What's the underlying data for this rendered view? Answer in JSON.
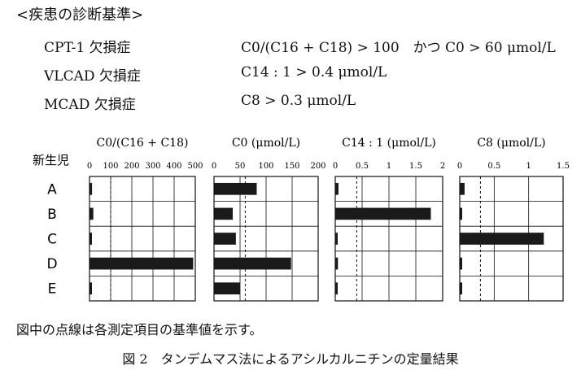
{
  "criteria": {
    "heading": "<疾患の診断基準>",
    "rows": [
      {
        "name": "CPT-1 欠損症",
        "condition": "C0/(C16 + C18) > 100　かつ C0 > 60 μmol/L"
      },
      {
        "name": "VLCAD 欠損症",
        "condition": "C14 : 1 > 0.4 μmol/L"
      },
      {
        "name": "MCAD 欠損症",
        "condition": "C8 > 0.3 μmol/L"
      }
    ]
  },
  "newborn_label": "新生児",
  "footnote": "図中の点線は各測定項目の基準値を示す。",
  "caption": "図 2　タンデムマス法によるアシルカルニチンの定量結果",
  "colors": {
    "bar": "#1a1a1a",
    "line": "#111111"
  },
  "chart_data": [
    {
      "type": "bar",
      "title": "C0/(C16 + C18)",
      "categories": [
        "A",
        "B",
        "C",
        "D",
        "E"
      ],
      "values": [
        12,
        18,
        6,
        490,
        10
      ],
      "xlim": [
        0,
        500
      ],
      "ticks": [
        0,
        100,
        200,
        300,
        400,
        500
      ],
      "tick_labels": [
        "0",
        "100",
        "200",
        "300",
        "400",
        "500"
      ],
      "reference": 100,
      "grid": true
    },
    {
      "type": "bar",
      "title": "C0 (μmol/L)",
      "categories": [
        "A",
        "B",
        "C",
        "D",
        "E"
      ],
      "values": [
        82,
        36,
        42,
        148,
        50
      ],
      "xlim": [
        0,
        200
      ],
      "ticks": [
        0,
        50,
        100,
        150,
        200
      ],
      "tick_labels": [
        "0",
        "50",
        "100",
        "150",
        "200"
      ],
      "reference": 60,
      "grid": true
    },
    {
      "type": "bar",
      "title": "C14 : 1 (μmol/L)",
      "categories": [
        "A",
        "B",
        "C",
        "D",
        "E"
      ],
      "values": [
        0.06,
        1.78,
        0.03,
        0.05,
        0.04
      ],
      "xlim": [
        0,
        2
      ],
      "ticks": [
        0,
        0.5,
        1,
        1.5,
        2
      ],
      "tick_labels": [
        "0",
        "0.5",
        "1",
        "1.5",
        "2"
      ],
      "reference": 0.4,
      "grid": true
    },
    {
      "type": "bar",
      "title": "C8 (μmol/L)",
      "categories": [
        "A",
        "B",
        "C",
        "D",
        "E"
      ],
      "values": [
        0.07,
        0.03,
        1.22,
        0.03,
        0.03
      ],
      "xlim": [
        0,
        1.5
      ],
      "ticks": [
        0,
        0.5,
        1,
        1.5
      ],
      "tick_labels": [
        "0",
        "0.5",
        "1",
        "1.5"
      ],
      "reference": 0.3,
      "grid": true
    }
  ]
}
